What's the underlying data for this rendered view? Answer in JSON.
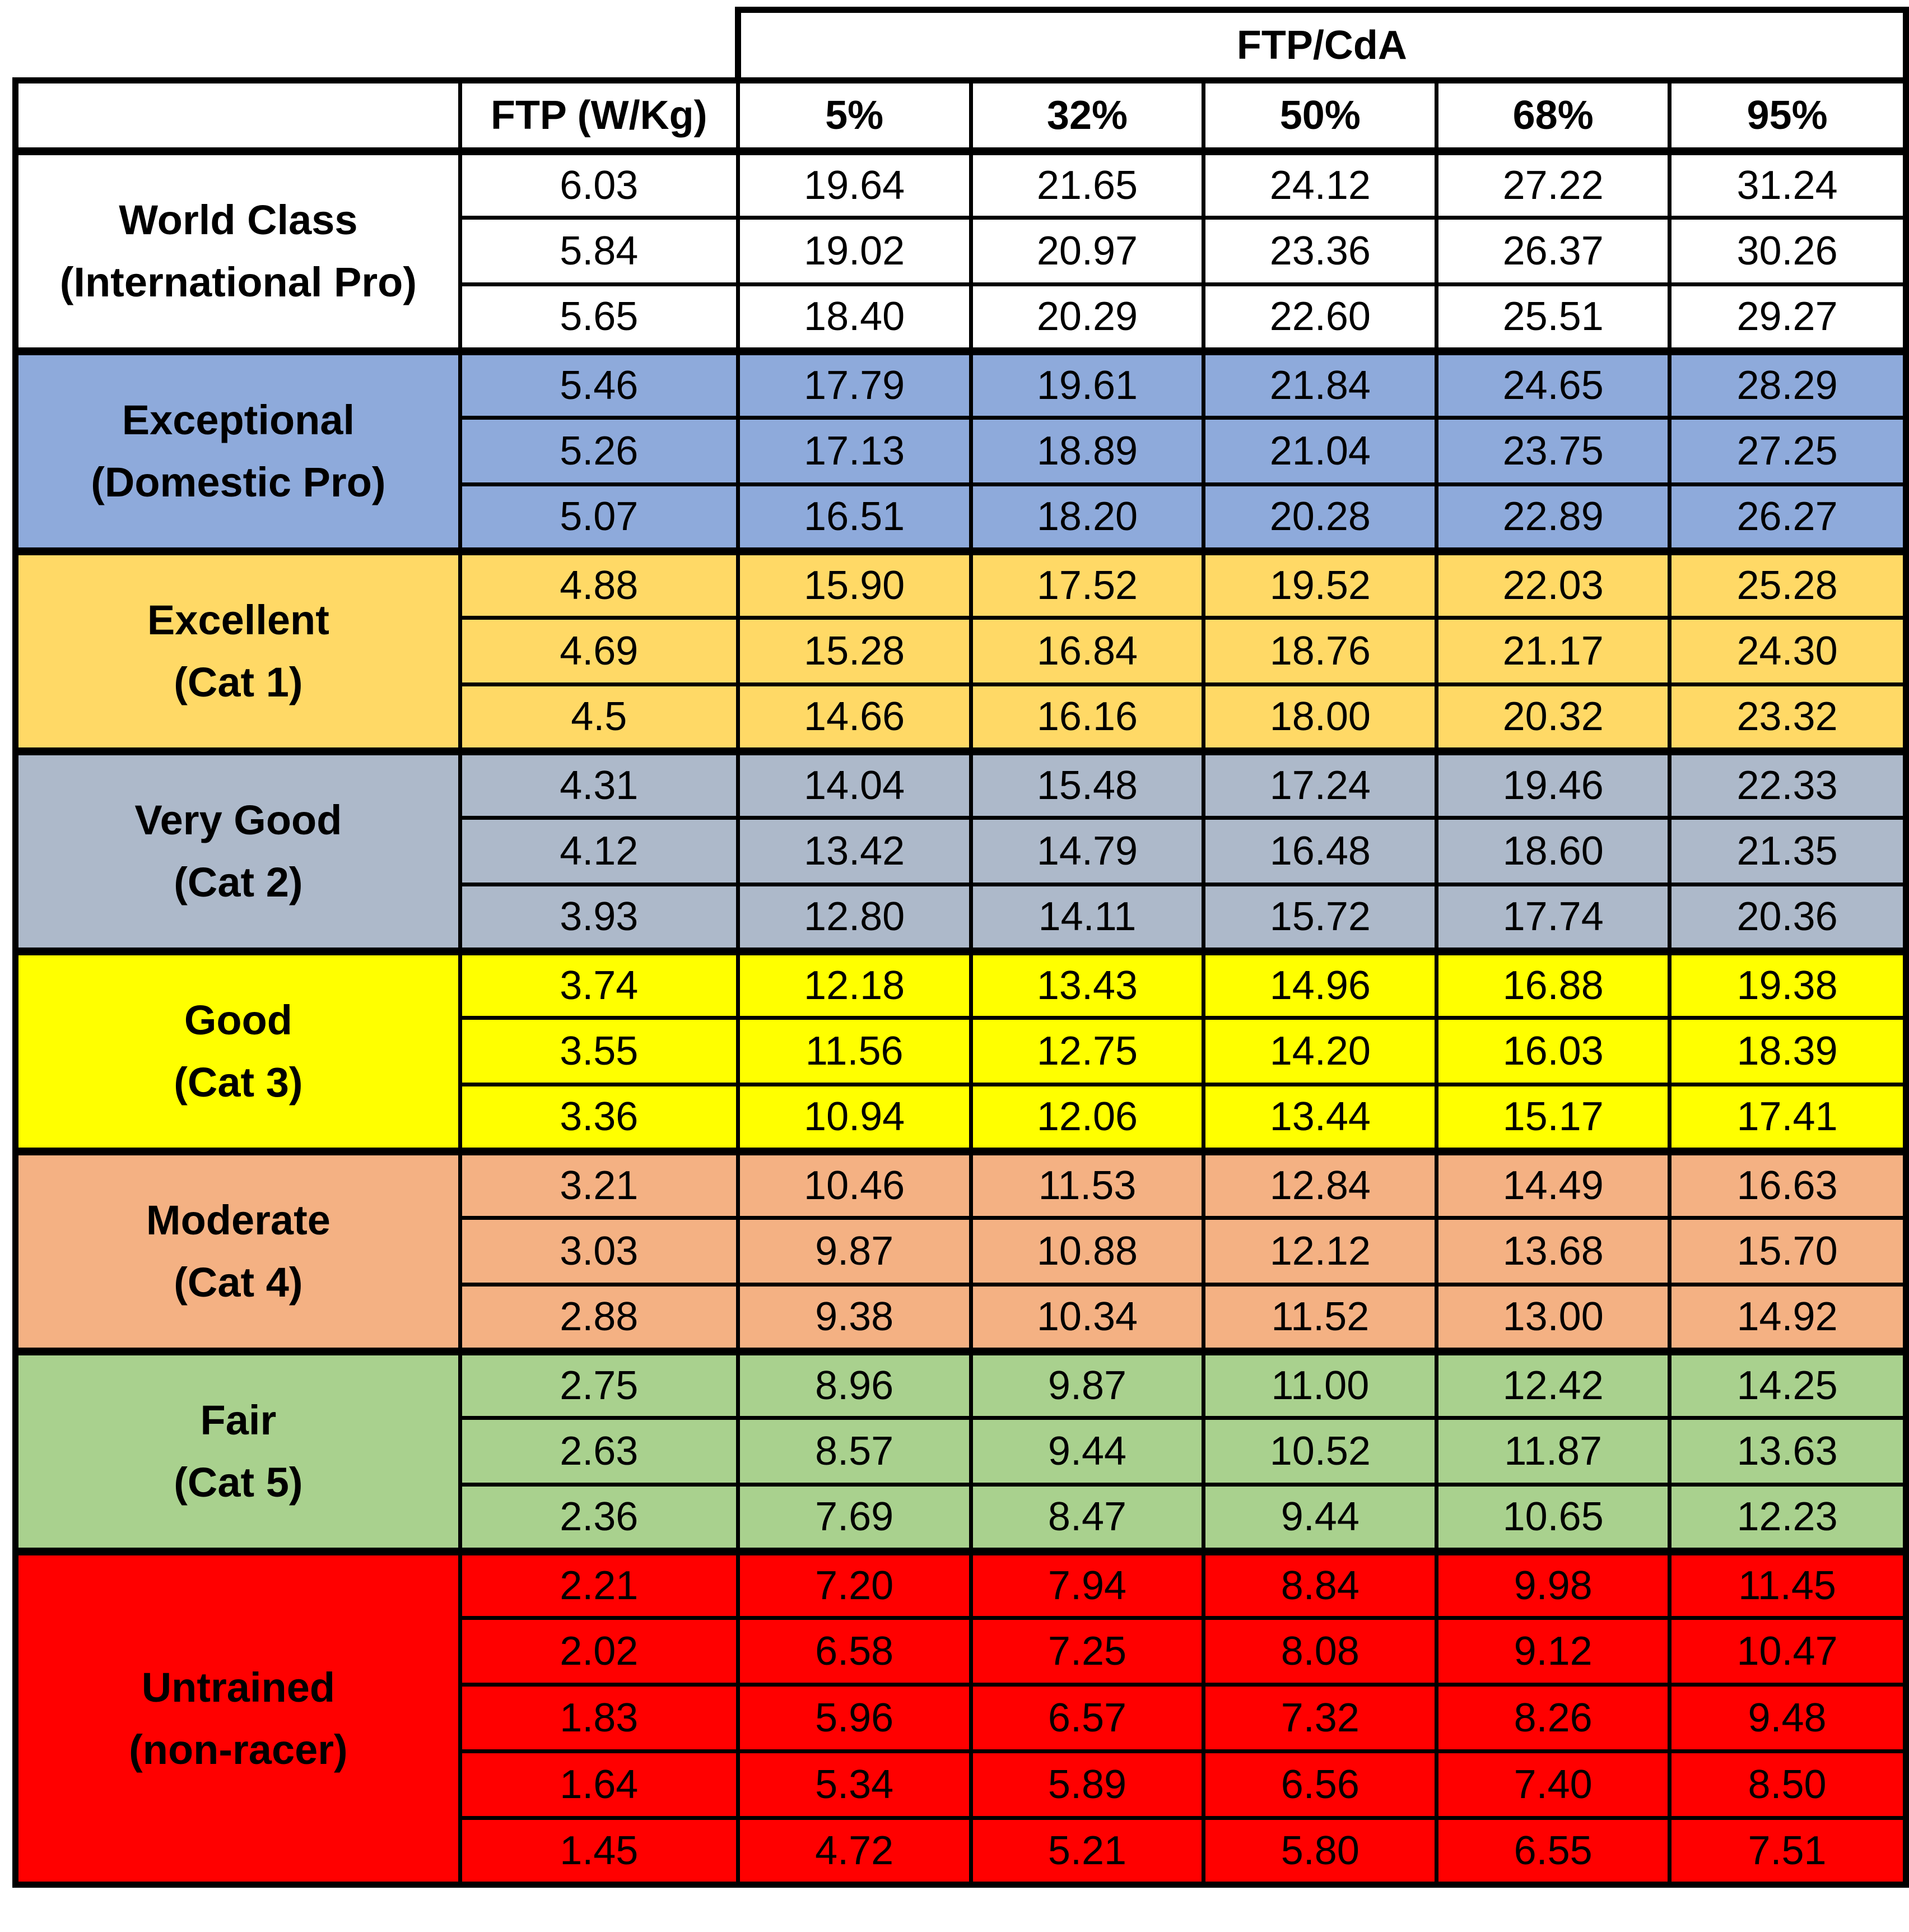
{
  "table": {
    "group_header": "FTP/CdA",
    "columns": [
      "",
      "FTP (W/Kg)",
      "5%",
      "32%",
      "50%",
      "68%",
      "95%"
    ],
    "groups": [
      {
        "label_line1": "World Class",
        "label_line2": "(International Pro)",
        "color": "#ffffff",
        "rows": [
          [
            "6.03",
            "19.64",
            "21.65",
            "24.12",
            "27.22",
            "31.24"
          ],
          [
            "5.84",
            "19.02",
            "20.97",
            "23.36",
            "26.37",
            "30.26"
          ],
          [
            "5.65",
            "18.40",
            "20.29",
            "22.60",
            "25.51",
            "29.27"
          ]
        ]
      },
      {
        "label_line1": "Exceptional",
        "label_line2": "(Domestic Pro)",
        "color": "#8eaadb",
        "rows": [
          [
            "5.46",
            "17.79",
            "19.61",
            "21.84",
            "24.65",
            "28.29"
          ],
          [
            "5.26",
            "17.13",
            "18.89",
            "21.04",
            "23.75",
            "27.25"
          ],
          [
            "5.07",
            "16.51",
            "18.20",
            "20.28",
            "22.89",
            "26.27"
          ]
        ]
      },
      {
        "label_line1": "Excellent",
        "label_line2": "(Cat 1)",
        "color": "#ffd966",
        "rows": [
          [
            "4.88",
            "15.90",
            "17.52",
            "19.52",
            "22.03",
            "25.28"
          ],
          [
            "4.69",
            "15.28",
            "16.84",
            "18.76",
            "21.17",
            "24.30"
          ],
          [
            "4.5",
            "14.66",
            "16.16",
            "18.00",
            "20.32",
            "23.32"
          ]
        ]
      },
      {
        "label_line1": "Very Good",
        "label_line2": "(Cat 2)",
        "color": "#adb9ca",
        "rows": [
          [
            "4.31",
            "14.04",
            "15.48",
            "17.24",
            "19.46",
            "22.33"
          ],
          [
            "4.12",
            "13.42",
            "14.79",
            "16.48",
            "18.60",
            "21.35"
          ],
          [
            "3.93",
            "12.80",
            "14.11",
            "15.72",
            "17.74",
            "20.36"
          ]
        ]
      },
      {
        "label_line1": "Good",
        "label_line2": "(Cat 3)",
        "color": "#ffff00",
        "rows": [
          [
            "3.74",
            "12.18",
            "13.43",
            "14.96",
            "16.88",
            "19.38"
          ],
          [
            "3.55",
            "11.56",
            "12.75",
            "14.20",
            "16.03",
            "18.39"
          ],
          [
            "3.36",
            "10.94",
            "12.06",
            "13.44",
            "15.17",
            "17.41"
          ]
        ]
      },
      {
        "label_line1": "Moderate",
        "label_line2": "(Cat 4)",
        "color": "#f4b183",
        "rows": [
          [
            "3.21",
            "10.46",
            "11.53",
            "12.84",
            "14.49",
            "16.63"
          ],
          [
            "3.03",
            "9.87",
            "10.88",
            "12.12",
            "13.68",
            "15.70"
          ],
          [
            "2.88",
            "9.38",
            "10.34",
            "11.52",
            "13.00",
            "14.92"
          ]
        ]
      },
      {
        "label_line1": "Fair",
        "label_line2": "(Cat 5)",
        "color": "#a9d18e",
        "rows": [
          [
            "2.75",
            "8.96",
            "9.87",
            "11.00",
            "12.42",
            "14.25"
          ],
          [
            "2.63",
            "8.57",
            "9.44",
            "10.52",
            "11.87",
            "13.63"
          ],
          [
            "2.36",
            "7.69",
            "8.47",
            "9.44",
            "10.65",
            "12.23"
          ]
        ]
      },
      {
        "label_line1": "Untrained",
        "label_line2": "(non-racer)",
        "color": "#ff0000",
        "rows": [
          [
            "2.21",
            "7.20",
            "7.94",
            "8.84",
            "9.98",
            "11.45"
          ],
          [
            "2.02",
            "6.58",
            "7.25",
            "8.08",
            "9.12",
            "10.47"
          ],
          [
            "1.83",
            "5.96",
            "6.57",
            "7.32",
            "8.26",
            "9.48"
          ],
          [
            "1.64",
            "5.34",
            "5.89",
            "6.56",
            "7.40",
            "8.50"
          ],
          [
            "1.45",
            "4.72",
            "5.21",
            "5.80",
            "6.55",
            "7.51"
          ]
        ]
      }
    ]
  }
}
